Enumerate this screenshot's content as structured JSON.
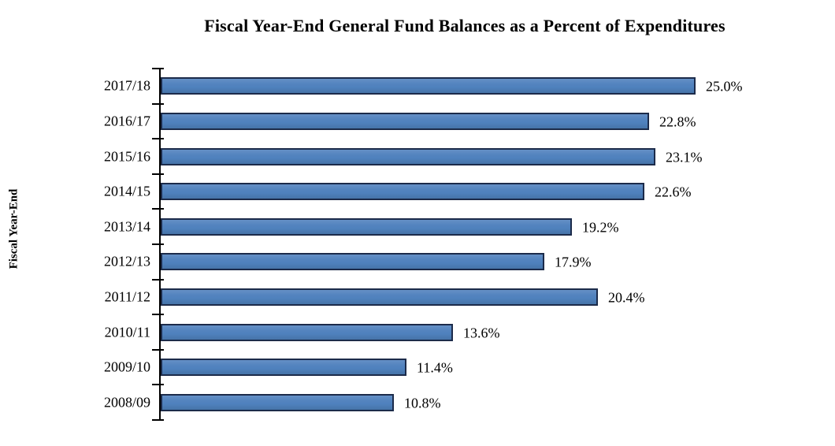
{
  "chart_data": {
    "type": "bar",
    "orientation": "horizontal",
    "title": "Fiscal Year-End General Fund Balances as a Percent of Expenditures",
    "ylabel": "Fiscal Year-End",
    "xlabel": "",
    "categories": [
      "2017/18",
      "2016/17",
      "2015/16",
      "2014/15",
      "2013/14",
      "2012/13",
      "2011/12",
      "2010/11",
      "2009/10",
      "2008/09"
    ],
    "values": [
      25.0,
      22.8,
      23.1,
      22.6,
      19.2,
      17.9,
      20.4,
      13.6,
      11.4,
      10.8
    ],
    "value_labels": [
      "25.0%",
      "22.8%",
      "23.1%",
      "22.6%",
      "19.2%",
      "17.9%",
      "20.4%",
      "13.6%",
      "11.4%",
      "10.8%"
    ],
    "xlim": [
      0,
      30
    ],
    "grid": false,
    "legend": null,
    "data_labels_position": "outside-end",
    "colors": {
      "bar_fill": "#4F81BD",
      "bar_border": "#1C2B4A",
      "axis": "#000000",
      "text": "#000000",
      "background": "#FFFFFF"
    }
  }
}
